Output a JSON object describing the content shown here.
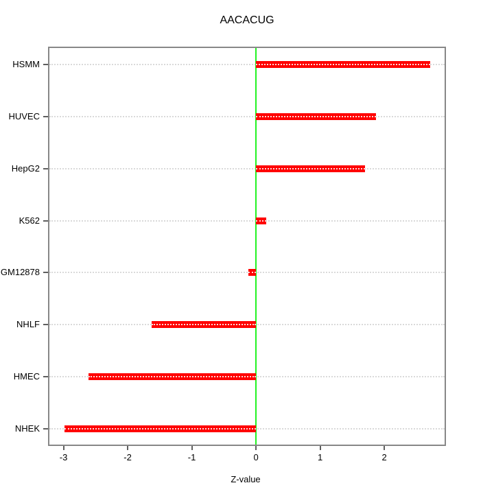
{
  "chart_data": {
    "type": "bar",
    "orientation": "horizontal",
    "title": "AACACUG",
    "xlabel": "Z-value",
    "ylabel": "",
    "categories": [
      "HSMM",
      "HUVEC",
      "HepG2",
      "K562",
      "GM12878",
      "NHLF",
      "HMEC",
      "NHEK"
    ],
    "values": [
      2.72,
      1.87,
      1.7,
      0.16,
      -0.12,
      -1.63,
      -2.61,
      -2.99
    ],
    "xlim": [
      -3.22,
      2.94
    ],
    "xticks": [
      -3,
      -2,
      -1,
      0,
      1,
      2
    ],
    "grid": "horizontal dotted line at each category",
    "zero_line_at": 0,
    "legend": "none",
    "colors": {
      "bar": "#ff0000",
      "zero_line": "#21f321",
      "grid": "#d9d9d9",
      "frame": "#878787",
      "tick": "#5e5e5e",
      "text": "#000000",
      "background": "#ffffff"
    }
  }
}
